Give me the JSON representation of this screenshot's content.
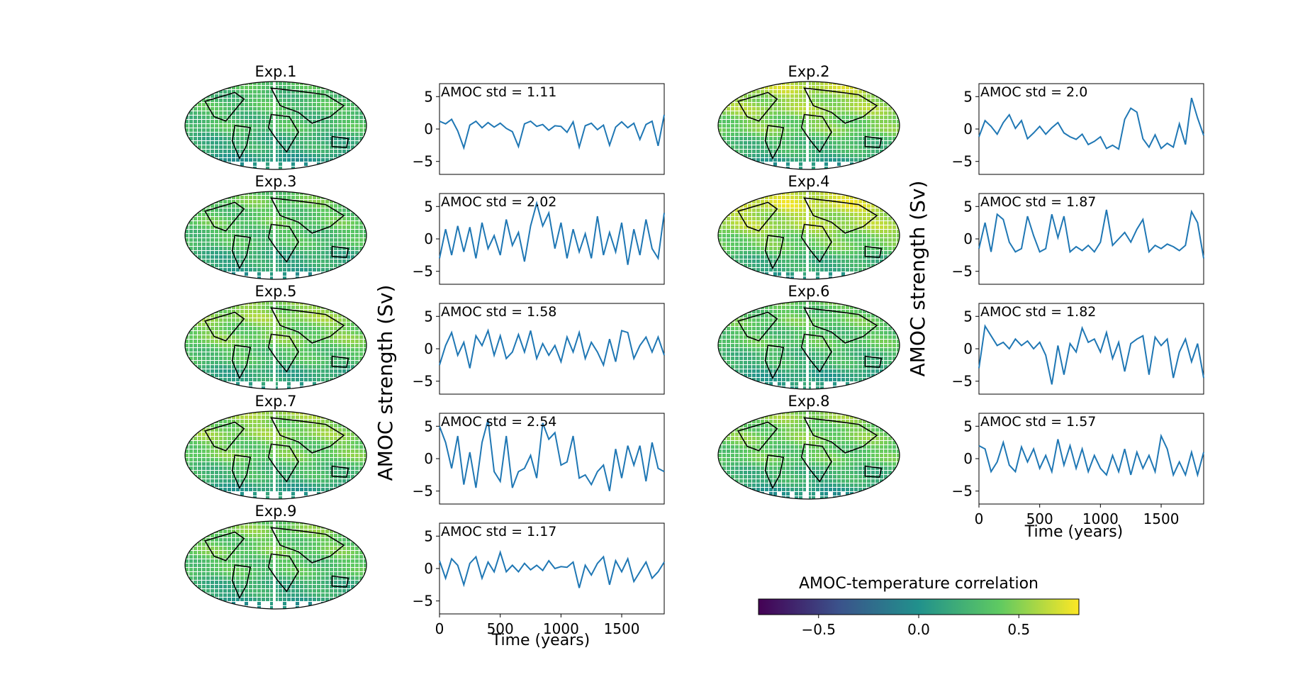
{
  "figure": {
    "ylabel": "AMOC strength (Sv)",
    "xlabel": "Time (years)",
    "colorbar": {
      "label": "AMOC-temperature correlation",
      "ticks": [
        "−0.5",
        "0.0",
        "0.5"
      ],
      "tick_values": [
        -0.5,
        0.0,
        0.5
      ],
      "range": [
        -0.8,
        0.8
      ],
      "colormap": [
        "#440154",
        "#3b528b",
        "#21918c",
        "#5ec962",
        "#fde725"
      ]
    }
  },
  "chart_data": {
    "type": "line",
    "xlabel": "Time (years)",
    "ylabel": "AMOC strength (Sv)",
    "xlim": [
      0,
      1850
    ],
    "ylim": [
      -7,
      7
    ],
    "xticks": [
      0,
      500,
      1000,
      1500
    ],
    "yticks": [
      -5,
      0,
      5
    ],
    "line_color": "#1f77b4",
    "x": [
      0,
      50,
      100,
      150,
      200,
      250,
      300,
      350,
      400,
      450,
      500,
      550,
      600,
      650,
      700,
      750,
      800,
      850,
      900,
      950,
      1000,
      1050,
      1100,
      1150,
      1200,
      1250,
      1300,
      1350,
      1400,
      1450,
      1500,
      1550,
      1600,
      1650,
      1700,
      1750,
      1800,
      1850
    ],
    "experiments": [
      {
        "title": "Exp.1",
        "annotation": "AMOC std = 1.11",
        "map_warmth": 0.35,
        "values": [
          1.2,
          0.8,
          1.5,
          -0.3,
          -2.9,
          0.6,
          1.2,
          0.2,
          1.0,
          0.3,
          0.9,
          0.1,
          -0.4,
          -2.7,
          0.8,
          1.2,
          0.4,
          0.7,
          -0.2,
          0.5,
          0.4,
          -0.5,
          1.1,
          -2.8,
          0.5,
          0.9,
          -0.1,
          0.6,
          -2.5,
          0.3,
          1.1,
          0.2,
          0.9,
          -1.6,
          0.7,
          1.2,
          -2.6,
          2.2
        ]
      },
      {
        "title": "Exp.2",
        "annotation": "AMOC std = 2.0",
        "map_warmth": 0.7,
        "values": [
          -1.2,
          1.3,
          0.4,
          -0.8,
          1.0,
          2.2,
          0.1,
          1.3,
          -1.5,
          -0.6,
          0.4,
          -0.8,
          0.2,
          1.0,
          -0.6,
          -1.2,
          -1.6,
          -0.8,
          -2.4,
          -1.9,
          -1.2,
          -3.0,
          -2.5,
          -3.1,
          1.5,
          3.2,
          2.6,
          -1.5,
          -2.8,
          -0.9,
          -3.0,
          -2.2,
          -2.8,
          0.8,
          -2.4,
          4.8,
          1.7,
          -1.0
        ]
      },
      {
        "title": "Exp.3",
        "annotation": "AMOC std = 2.02",
        "map_warmth": 0.45,
        "values": [
          -3.0,
          1.5,
          -2.5,
          2.0,
          -2.0,
          1.8,
          -3.0,
          2.5,
          -1.5,
          0.5,
          -2.5,
          3.0,
          -1.0,
          1.0,
          -3.5,
          2.0,
          5.5,
          2.0,
          4.0,
          -1.5,
          2.5,
          -3.0,
          1.5,
          -2.0,
          0.8,
          -3.0,
          3.5,
          -2.5,
          1.0,
          -2.0,
          2.5,
          -4.0,
          1.5,
          -2.5,
          3.0,
          -1.5,
          -3.0,
          4.0
        ]
      },
      {
        "title": "Exp.4",
        "annotation": "AMOC std = 1.87",
        "map_warmth": 0.8,
        "values": [
          -1.5,
          2.5,
          -2.0,
          3.8,
          3.0,
          -0.5,
          -2.0,
          -1.5,
          3.5,
          0.5,
          -2.0,
          -1.5,
          3.8,
          0.2,
          3.5,
          -2.0,
          -1.2,
          -1.8,
          -1.0,
          -2.0,
          -0.5,
          4.5,
          -1.0,
          0.0,
          1.0,
          -0.5,
          1.5,
          3.0,
          -2.0,
          -1.0,
          -1.5,
          -0.8,
          -1.2,
          -1.8,
          -1.0,
          4.2,
          2.5,
          -3.0
        ]
      },
      {
        "title": "Exp.5",
        "annotation": "AMOC std = 1.58",
        "map_warmth": 0.6,
        "values": [
          -2.5,
          0.5,
          2.5,
          -1.0,
          1.0,
          -3.0,
          2.0,
          0.5,
          2.8,
          -1.0,
          2.0,
          -1.5,
          -0.5,
          2.2,
          -0.5,
          2.8,
          -1.5,
          0.8,
          -1.0,
          0.5,
          -2.0,
          1.8,
          -0.5,
          2.5,
          -1.5,
          1.0,
          -0.5,
          -2.5,
          1.5,
          -2.0,
          2.8,
          2.5,
          -1.5,
          0.5,
          1.8,
          -0.5,
          1.8,
          -1.0
        ]
      },
      {
        "title": "Exp.6",
        "annotation": "AMOC std = 1.82",
        "map_warmth": 0.45,
        "values": [
          -3.0,
          3.5,
          2.0,
          0.5,
          1.0,
          0.0,
          1.5,
          0.5,
          1.2,
          0.0,
          1.0,
          -1.0,
          -5.5,
          0.5,
          -4.0,
          0.8,
          -0.5,
          3.2,
          1.0,
          1.5,
          -0.5,
          2.5,
          -1.5,
          1.0,
          -3.5,
          0.8,
          1.5,
          2.0,
          -4.0,
          1.8,
          0.5,
          1.5,
          -4.5,
          -0.5,
          1.5,
          -2.0,
          0.8,
          -4.5
        ]
      },
      {
        "title": "Exp.7",
        "annotation": "AMOC std = 2.54",
        "map_warmth": 0.6,
        "values": [
          5.0,
          2.5,
          -1.5,
          3.5,
          -4.0,
          1.0,
          -4.5,
          2.5,
          6.0,
          -2.0,
          -3.5,
          3.5,
          -4.5,
          -2.0,
          -1.5,
          0.5,
          -3.0,
          5.5,
          3.0,
          4.0,
          -1.0,
          -0.5,
          3.5,
          -3.0,
          -2.5,
          -4.0,
          -2.0,
          -1.0,
          -5.0,
          1.5,
          -3.0,
          2.0,
          -1.0,
          2.0,
          -3.5,
          2.5,
          -1.5,
          -2.0
        ]
      },
      {
        "title": "Exp.8",
        "annotation": "AMOC std = 1.57",
        "map_warmth": 0.55,
        "values": [
          2.0,
          1.5,
          -2.0,
          -0.5,
          2.5,
          -1.0,
          -2.0,
          1.8,
          -0.5,
          1.5,
          -1.5,
          0.5,
          -2.0,
          3.0,
          -1.0,
          2.0,
          -1.5,
          1.5,
          -2.0,
          0.5,
          -1.5,
          -2.5,
          0.5,
          -2.0,
          1.5,
          -2.5,
          1.0,
          -1.5,
          0.5,
          -2.0,
          3.5,
          1.5,
          -2.5,
          -0.5,
          -2.5,
          1.0,
          -2.5,
          1.0
        ]
      },
      {
        "title": "Exp.9",
        "annotation": "AMOC std = 1.17",
        "map_warmth": 0.5,
        "values": [
          1.2,
          -1.5,
          1.5,
          0.5,
          -2.5,
          0.8,
          1.8,
          -1.5,
          1.0,
          -0.5,
          2.5,
          -0.5,
          0.5,
          -0.5,
          0.8,
          -0.2,
          0.5,
          -0.3,
          1.2,
          0.0,
          0.3,
          0.2,
          1.0,
          -3.0,
          0.5,
          -1.0,
          0.8,
          1.8,
          -2.5,
          1.2,
          -0.5,
          1.5,
          -2.0,
          -0.5,
          1.0,
          -1.5,
          -0.5,
          1.0
        ]
      }
    ]
  }
}
